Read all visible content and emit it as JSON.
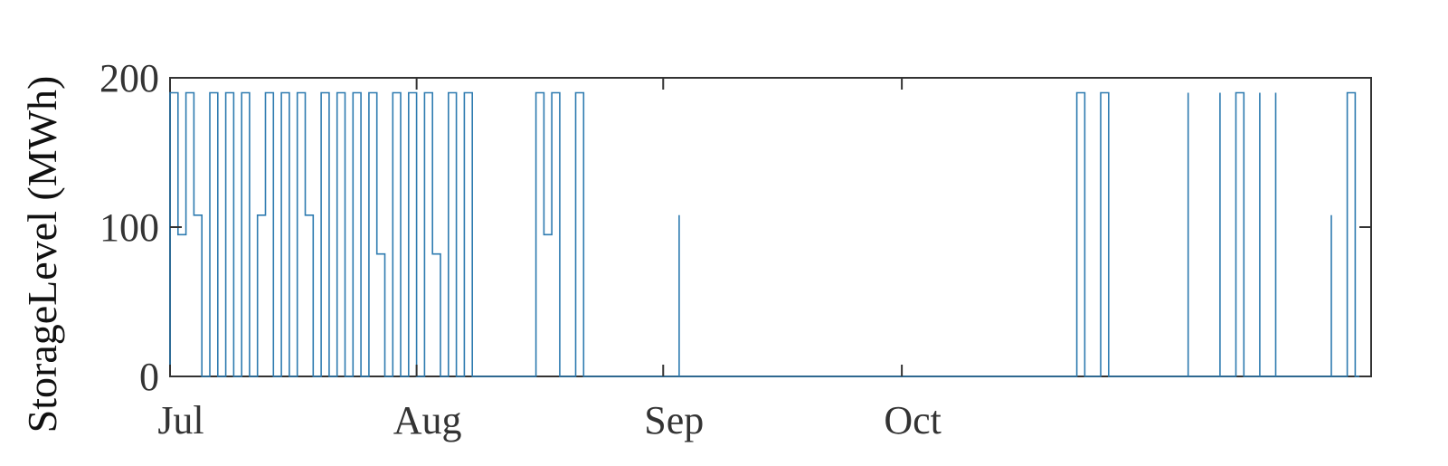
{
  "chart_data": {
    "type": "line",
    "title": "",
    "xlabel": "",
    "ylabel": "StorageLevel (MWh)",
    "ylim": [
      0,
      200
    ],
    "xlim": [
      "2020-07-01",
      "2020-11-29"
    ],
    "grid": false,
    "yticks": [
      {
        "value": 0,
        "label": "0"
      },
      {
        "value": 100,
        "label": "100"
      },
      {
        "value": 200,
        "label": "200"
      }
    ],
    "xticks": [
      {
        "value": "2020-07-01",
        "label": "Jul"
      },
      {
        "value": "2020-08-01",
        "label": "Aug"
      },
      {
        "value": "2020-09-01",
        "label": "Sep"
      },
      {
        "value": "2020-10-01",
        "label": "Oct"
      }
    ],
    "series_color": "#2e7bb0",
    "series": [
      {
        "points": [
          [
            "2020-07-01",
            0
          ],
          [
            "2020-07-01",
            190
          ],
          [
            "2020-07-02",
            190
          ],
          [
            "2020-07-02",
            95
          ],
          [
            "2020-07-03",
            95
          ],
          [
            "2020-07-03",
            190
          ],
          [
            "2020-07-04",
            190
          ],
          [
            "2020-07-04",
            108
          ],
          [
            "2020-07-05",
            108
          ],
          [
            "2020-07-05",
            0
          ],
          [
            "2020-07-06",
            0
          ],
          [
            "2020-07-06",
            190
          ],
          [
            "2020-07-07",
            190
          ],
          [
            "2020-07-07",
            0
          ],
          [
            "2020-07-08",
            0
          ],
          [
            "2020-07-08",
            190
          ],
          [
            "2020-07-09",
            190
          ],
          [
            "2020-07-09",
            0
          ],
          [
            "2020-07-10",
            0
          ],
          [
            "2020-07-10",
            190
          ],
          [
            "2020-07-11",
            190
          ],
          [
            "2020-07-11",
            0
          ],
          [
            "2020-07-12",
            0
          ],
          [
            "2020-07-12",
            108
          ],
          [
            "2020-07-13",
            108
          ],
          [
            "2020-07-13",
            190
          ],
          [
            "2020-07-14",
            190
          ],
          [
            "2020-07-14",
            0
          ],
          [
            "2020-07-15",
            0
          ],
          [
            "2020-07-15",
            190
          ],
          [
            "2020-07-16",
            190
          ],
          [
            "2020-07-16",
            0
          ],
          [
            "2020-07-17",
            0
          ],
          [
            "2020-07-17",
            190
          ],
          [
            "2020-07-18",
            190
          ],
          [
            "2020-07-18",
            108
          ],
          [
            "2020-07-19",
            108
          ],
          [
            "2020-07-19",
            0
          ],
          [
            "2020-07-20",
            0
          ],
          [
            "2020-07-20",
            190
          ],
          [
            "2020-07-21",
            190
          ],
          [
            "2020-07-21",
            0
          ],
          [
            "2020-07-22",
            0
          ],
          [
            "2020-07-22",
            190
          ],
          [
            "2020-07-23",
            190
          ],
          [
            "2020-07-23",
            0
          ],
          [
            "2020-07-24",
            0
          ],
          [
            "2020-07-24",
            190
          ],
          [
            "2020-07-25",
            190
          ],
          [
            "2020-07-25",
            0
          ],
          [
            "2020-07-26",
            0
          ],
          [
            "2020-07-26",
            190
          ],
          [
            "2020-07-27",
            190
          ],
          [
            "2020-07-27",
            82
          ],
          [
            "2020-07-28",
            82
          ],
          [
            "2020-07-28",
            0
          ],
          [
            "2020-07-29",
            0
          ],
          [
            "2020-07-29",
            190
          ],
          [
            "2020-07-30",
            190
          ],
          [
            "2020-07-30",
            0
          ],
          [
            "2020-07-31",
            0
          ],
          [
            "2020-07-31",
            190
          ],
          [
            "2020-08-01",
            190
          ],
          [
            "2020-08-01",
            0
          ],
          [
            "2020-08-02",
            0
          ],
          [
            "2020-08-02",
            190
          ],
          [
            "2020-08-03",
            190
          ],
          [
            "2020-08-03",
            82
          ],
          [
            "2020-08-04",
            82
          ],
          [
            "2020-08-04",
            0
          ],
          [
            "2020-08-05",
            0
          ],
          [
            "2020-08-05",
            190
          ],
          [
            "2020-08-06",
            190
          ],
          [
            "2020-08-06",
            0
          ],
          [
            "2020-08-07",
            0
          ],
          [
            "2020-08-07",
            190
          ],
          [
            "2020-08-08",
            190
          ],
          [
            "2020-08-08",
            0
          ],
          [
            "2020-08-16",
            0
          ],
          [
            "2020-08-16",
            190
          ],
          [
            "2020-08-17",
            190
          ],
          [
            "2020-08-17",
            95
          ],
          [
            "2020-08-18",
            95
          ],
          [
            "2020-08-18",
            190
          ],
          [
            "2020-08-19",
            190
          ],
          [
            "2020-08-19",
            0
          ],
          [
            "2020-08-21",
            0
          ],
          [
            "2020-08-21",
            190
          ],
          [
            "2020-08-22",
            190
          ],
          [
            "2020-08-22",
            0
          ],
          [
            "2020-09-03",
            0
          ],
          [
            "2020-09-03",
            108
          ],
          [
            "2020-09-03",
            0
          ],
          [
            "2020-10-23",
            0
          ],
          [
            "2020-10-23",
            190
          ],
          [
            "2020-10-24",
            190
          ],
          [
            "2020-10-24",
            0
          ],
          [
            "2020-10-26",
            0
          ],
          [
            "2020-10-26",
            190
          ],
          [
            "2020-10-27",
            190
          ],
          [
            "2020-10-27",
            0
          ],
          [
            "2020-11-06",
            0
          ],
          [
            "2020-11-06",
            190
          ],
          [
            "2020-11-06",
            0
          ],
          [
            "2020-11-10",
            0
          ],
          [
            "2020-11-10",
            190
          ],
          [
            "2020-11-10",
            0
          ],
          [
            "2020-11-12",
            0
          ],
          [
            "2020-11-12",
            190
          ],
          [
            "2020-11-13",
            190
          ],
          [
            "2020-11-13",
            0
          ],
          [
            "2020-11-15",
            0
          ],
          [
            "2020-11-15",
            190
          ],
          [
            "2020-11-15",
            0
          ],
          [
            "2020-11-17",
            0
          ],
          [
            "2020-11-17",
            190
          ],
          [
            "2020-11-17",
            0
          ],
          [
            "2020-11-24",
            0
          ],
          [
            "2020-11-24",
            108
          ],
          [
            "2020-11-24",
            0
          ],
          [
            "2020-11-26",
            0
          ],
          [
            "2020-11-26",
            190
          ],
          [
            "2020-11-27",
            190
          ],
          [
            "2020-11-27",
            0
          ],
          [
            "2020-11-29",
            0
          ]
        ]
      }
    ]
  }
}
